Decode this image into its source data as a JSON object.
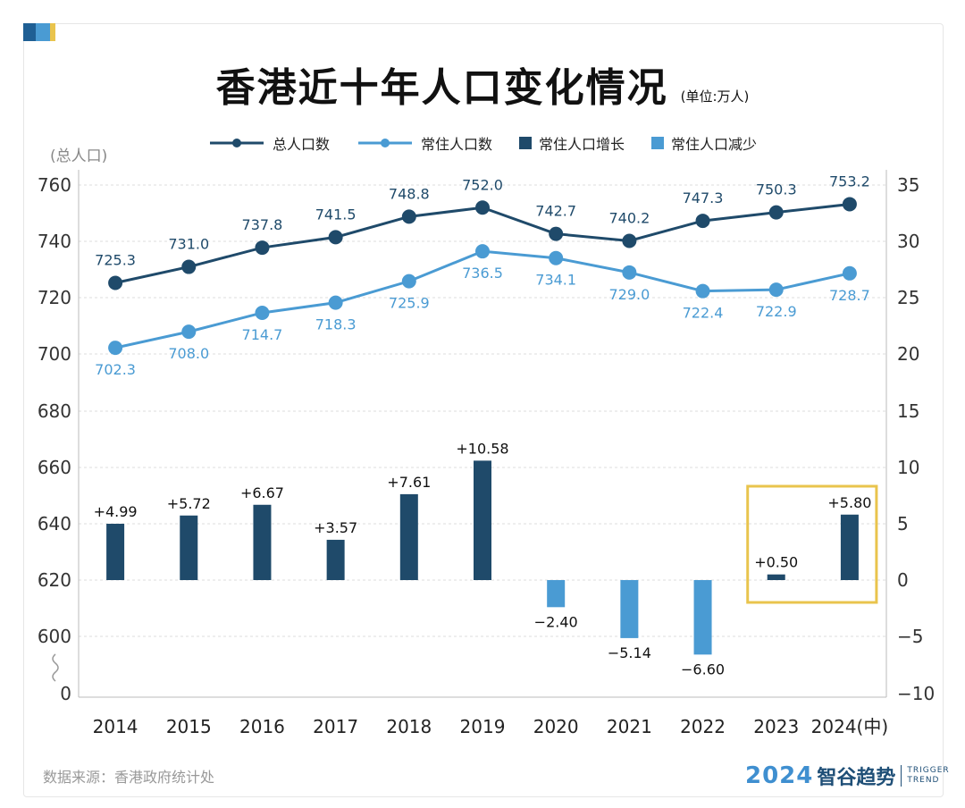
{
  "title": "香港近十年人口变化情况",
  "unit": "(单位:万人)",
  "left_axis_unit": "(总人口)",
  "source": "数据来源：香港政府统计处",
  "logo": {
    "year": "2024",
    "name": "智谷趋势",
    "en_top": "TRIGGER",
    "en_bottom": "TREND"
  },
  "legend": [
    {
      "label": "总人口数",
      "color": "#1f4a6a",
      "kind": "line"
    },
    {
      "label": "常住人口数",
      "color": "#4a9bd3",
      "kind": "line"
    },
    {
      "label": "常住人口增长",
      "color": "#1f4a6a",
      "kind": "bar"
    },
    {
      "label": "常住人口减少",
      "color": "#4a9bd3",
      "kind": "bar"
    }
  ],
  "colors": {
    "dark": "#1f4a6a",
    "light": "#4a9bd3",
    "highlight": "#e9c44d",
    "grid": "#dddddd",
    "axis": "#bbbbbb"
  },
  "chart_data": {
    "type": "bar",
    "categories": [
      "2014",
      "2015",
      "2016",
      "2017",
      "2018",
      "2019",
      "2020",
      "2021",
      "2022",
      "2023",
      "2024(中)"
    ],
    "series": [
      {
        "name": "总人口数",
        "type": "line",
        "axis": "left",
        "values": [
          725.3,
          731.0,
          737.8,
          741.5,
          748.8,
          752.0,
          742.7,
          740.2,
          747.3,
          750.3,
          753.2
        ]
      },
      {
        "name": "常住人口数",
        "type": "line",
        "axis": "left",
        "values": [
          702.3,
          708.0,
          714.7,
          718.3,
          725.9,
          736.5,
          734.1,
          729.0,
          722.4,
          722.9,
          728.7
        ]
      },
      {
        "name": "常住人口增长/减少",
        "type": "bar",
        "axis": "right",
        "values": [
          4.99,
          5.72,
          6.67,
          3.57,
          7.61,
          10.58,
          -2.4,
          -5.14,
          -6.6,
          0.5,
          5.8
        ]
      }
    ],
    "value_labels": {
      "total": [
        "725.3",
        "731.0",
        "737.8",
        "741.5",
        "748.8",
        "752.0",
        "742.7",
        "740.2",
        "747.3",
        "750.3",
        "753.2"
      ],
      "resident": [
        "702.3",
        "708.0",
        "714.7",
        "718.3",
        "725.9",
        "736.5",
        "734.1",
        "729.0",
        "722.4",
        "722.9",
        "728.7"
      ],
      "change": [
        "+4.99",
        "+5.72",
        "+6.67",
        "+3.57",
        "+7.61",
        "+10.58",
        "−2.40",
        "−5.14",
        "−6.60",
        "+0.50",
        "+5.80"
      ]
    },
    "left_axis": {
      "ticks": [
        "760",
        "740",
        "720",
        "700",
        "680",
        "660",
        "640",
        "620",
        "600",
        "0"
      ],
      "axis_break": true
    },
    "right_axis": {
      "ticks": [
        "35",
        "30",
        "25",
        "20",
        "15",
        "10",
        "5",
        "0",
        "−5",
        "−10"
      ],
      "ylim": [
        -10,
        35
      ]
    },
    "highlight_categories": [
      "2023",
      "2024(中)"
    ],
    "grid": true,
    "legend_position": "top-center"
  }
}
